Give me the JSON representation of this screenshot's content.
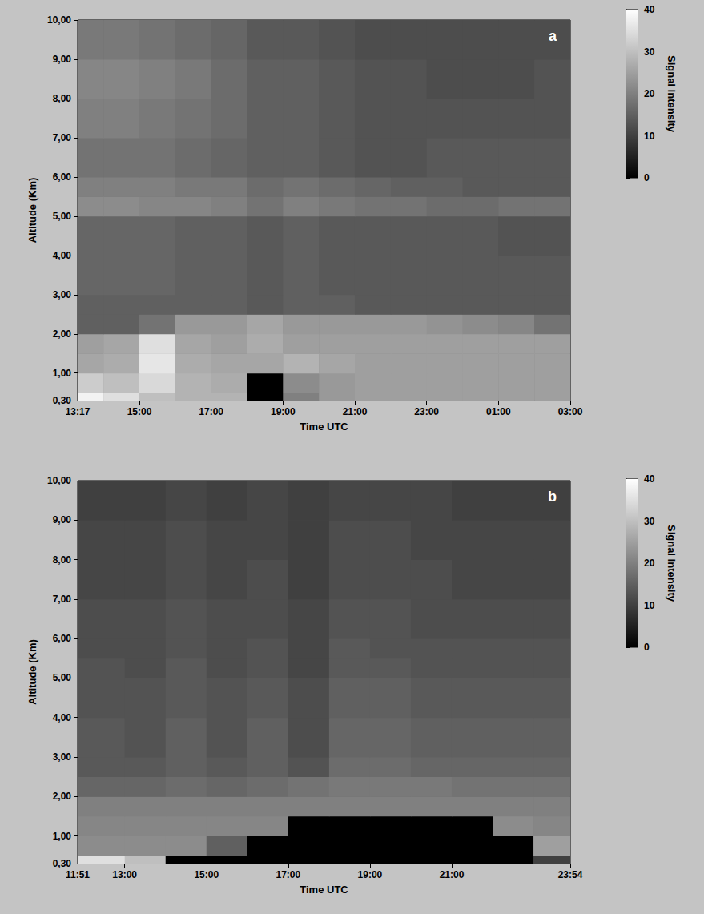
{
  "chart_data": [
    {
      "type": "heatmap",
      "title": "a",
      "x_label": "Time UTC",
      "y_label": "Altitude (Km)",
      "xlim": [
        13.283,
        27
      ],
      "xticks": [
        {
          "value": 13.283,
          "label": "13:17"
        },
        {
          "value": 15,
          "label": "15:00"
        },
        {
          "value": 17,
          "label": "17:00"
        },
        {
          "value": 19,
          "label": "19:00"
        },
        {
          "value": 21,
          "label": "21:00"
        },
        {
          "value": 23,
          "label": "23:00"
        },
        {
          "value": 25,
          "label": "01:00"
        },
        {
          "value": 27,
          "label": "03:00"
        }
      ],
      "ylim": [
        0.3,
        10
      ],
      "yticks": [
        {
          "value": 0.3,
          "label": "0,30"
        },
        {
          "value": 1,
          "label": "1,00"
        },
        {
          "value": 2,
          "label": "2,00"
        },
        {
          "value": 3,
          "label": "3,00"
        },
        {
          "value": 4,
          "label": "4,00"
        },
        {
          "value": 5,
          "label": "5,00"
        },
        {
          "value": 6,
          "label": "6,00"
        },
        {
          "value": 7,
          "label": "7,00"
        },
        {
          "value": 8,
          "label": "8,00"
        },
        {
          "value": 9,
          "label": "9,00"
        },
        {
          "value": 10,
          "label": "10,00"
        }
      ],
      "x_edges": [
        13.283,
        14,
        15,
        16,
        17,
        18,
        19,
        20,
        21,
        22,
        23,
        24,
        25,
        26,
        27
      ],
      "y_edges": [
        0.3,
        0.5,
        1,
        1.5,
        2,
        2.5,
        3,
        4,
        5,
        5.5,
        6,
        7,
        8,
        9,
        10
      ],
      "cells": [
        [
          38,
          35,
          30,
          28,
          28,
          0,
          20,
          24,
          25,
          25,
          25,
          25,
          25,
          25
        ],
        [
          32,
          30,
          34,
          28,
          27,
          0,
          22,
          24,
          25,
          25,
          25,
          25,
          25,
          25
        ],
        [
          26,
          27,
          36,
          27,
          26,
          26,
          28,
          26,
          25,
          25,
          25,
          25,
          25,
          25
        ],
        [
          25,
          26,
          35,
          26,
          25,
          27,
          25,
          25,
          25,
          25,
          25,
          25,
          25,
          25
        ],
        [
          15,
          15,
          18,
          24,
          24,
          26,
          24,
          24,
          24,
          24,
          23,
          22,
          21,
          18
        ],
        [
          15,
          15,
          15,
          15,
          15,
          14,
          15,
          15,
          14,
          14,
          14,
          14,
          14,
          14
        ],
        [
          16,
          16,
          16,
          15,
          15,
          14,
          15,
          14,
          14,
          14,
          14,
          14,
          14,
          14
        ],
        [
          16,
          16,
          16,
          15,
          15,
          14,
          15,
          14,
          14,
          14,
          14,
          14,
          13,
          13
        ],
        [
          22,
          22,
          21,
          21,
          20,
          18,
          20,
          19,
          18,
          18,
          17,
          17,
          18,
          18
        ],
        [
          20,
          20,
          20,
          19,
          19,
          17,
          18,
          17,
          16,
          15,
          15,
          14,
          14,
          14
        ],
        [
          18,
          18,
          18,
          17,
          16,
          15,
          15,
          14,
          13,
          13,
          14,
          14,
          14,
          14
        ],
        [
          20,
          20,
          19,
          18,
          17,
          15,
          15,
          14,
          13,
          13,
          13,
          13,
          13,
          13
        ],
        [
          21,
          21,
          20,
          19,
          17,
          15,
          15,
          14,
          13,
          13,
          12,
          12,
          12,
          13
        ],
        [
          19,
          19,
          18,
          17,
          16,
          14,
          14,
          13,
          12,
          12,
          12,
          12,
          12,
          12
        ]
      ],
      "colorbar": {
        "title": "Signal Intensity",
        "lim": [
          0,
          40
        ],
        "ticks": [
          0,
          10,
          20,
          30,
          40
        ]
      }
    },
    {
      "type": "heatmap",
      "title": "b",
      "x_label": "Time UTC",
      "y_label": "Altitude (Km)",
      "xlim": [
        11.85,
        23.9
      ],
      "xticks": [
        {
          "value": 11.85,
          "label": "11:51"
        },
        {
          "value": 13,
          "label": "13:00"
        },
        {
          "value": 15,
          "label": "15:00"
        },
        {
          "value": 17,
          "label": "17:00"
        },
        {
          "value": 19,
          "label": "19:00"
        },
        {
          "value": 21,
          "label": "21:00"
        },
        {
          "value": 23.9,
          "label": "23:54"
        }
      ],
      "ylim": [
        0.3,
        10
      ],
      "yticks": [
        {
          "value": 0.3,
          "label": "0,30"
        },
        {
          "value": 1,
          "label": "1,00"
        },
        {
          "value": 2,
          "label": "2,00"
        },
        {
          "value": 3,
          "label": "3,00"
        },
        {
          "value": 4,
          "label": "4,00"
        },
        {
          "value": 5,
          "label": "5,00"
        },
        {
          "value": 6,
          "label": "6,00"
        },
        {
          "value": 7,
          "label": "7,00"
        },
        {
          "value": 8,
          "label": "8,00"
        },
        {
          "value": 9,
          "label": "9,00"
        },
        {
          "value": 10,
          "label": "10,00"
        }
      ],
      "x_edges": [
        11.85,
        13,
        14,
        15,
        16,
        17,
        18,
        19,
        20,
        21,
        22,
        23,
        23.9
      ],
      "y_edges": [
        0.3,
        0.5,
        1,
        1.5,
        2,
        2.5,
        3,
        4,
        5,
        5.5,
        6,
        7,
        8,
        9,
        10
      ],
      "cells": [
        [
          35,
          30,
          0,
          0,
          0,
          0,
          0,
          0,
          0,
          0,
          0,
          10
        ],
        [
          22,
          22,
          22,
          15,
          0,
          0,
          0,
          0,
          0,
          0,
          0,
          25
        ],
        [
          21,
          21,
          21,
          21,
          21,
          0,
          0,
          0,
          0,
          0,
          22,
          21
        ],
        [
          20,
          20,
          20,
          20,
          20,
          20,
          20,
          20,
          20,
          20,
          20,
          20
        ],
        [
          16,
          16,
          17,
          16,
          17,
          18,
          19,
          19,
          19,
          18,
          18,
          18
        ],
        [
          14,
          14,
          15,
          14,
          15,
          13,
          17,
          17,
          16,
          16,
          16,
          16
        ],
        [
          14,
          13,
          15,
          13,
          15,
          12,
          16,
          16,
          15,
          15,
          15,
          15
        ],
        [
          13,
          13,
          14,
          13,
          14,
          12,
          15,
          15,
          14,
          14,
          14,
          14
        ],
        [
          13,
          12,
          14,
          12,
          13,
          11,
          14,
          14,
          13,
          13,
          13,
          13
        ],
        [
          12,
          12,
          13,
          12,
          13,
          11,
          14,
          13,
          13,
          13,
          13,
          13
        ],
        [
          12,
          12,
          13,
          12,
          12,
          11,
          13,
          13,
          12,
          12,
          12,
          12
        ],
        [
          11,
          11,
          12,
          11,
          12,
          10,
          12,
          12,
          12,
          11,
          11,
          11
        ],
        [
          11,
          11,
          12,
          11,
          11,
          10,
          12,
          12,
          11,
          11,
          11,
          11
        ],
        [
          10,
          10,
          11,
          10,
          11,
          10,
          11,
          11,
          11,
          10,
          10,
          10
        ]
      ],
      "colorbar": {
        "title": "Signal Intensity",
        "lim": [
          0,
          40
        ],
        "ticks": [
          0,
          10,
          20,
          30,
          40
        ]
      }
    }
  ]
}
